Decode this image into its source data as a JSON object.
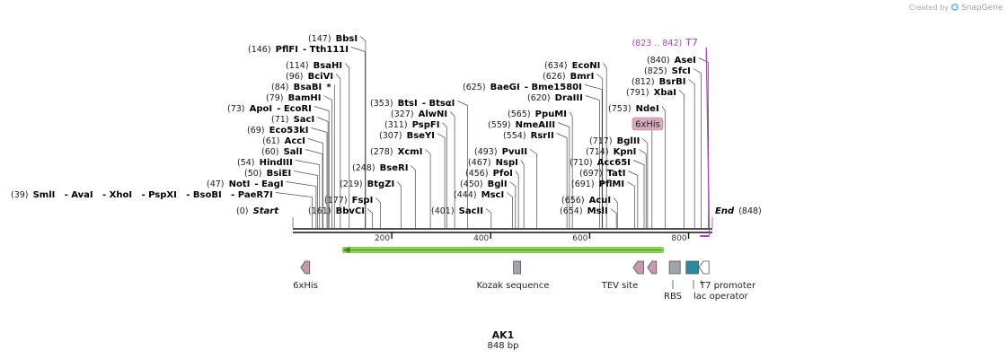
{
  "credit": {
    "prefix": "Created by",
    "brand": "SnapGene"
  },
  "construct": {
    "name": "AK1",
    "length_label": "848 bp",
    "length": 848
  },
  "scale": {
    "ticks": [
      200,
      400,
      600,
      800
    ]
  },
  "ends": {
    "start": {
      "pos": "(0)",
      "label": "Start"
    },
    "end": {
      "label": "End",
      "pos": "(848)"
    }
  },
  "sites": [
    {
      "id": "bbsi",
      "pos": "(147)",
      "name": "BbsI",
      "cut": 147
    },
    {
      "id": "pflfi",
      "pos": "(146)",
      "name": "PflFI",
      "alt": "- Tth111I",
      "cut": 146
    },
    {
      "id": "bsahi",
      "pos": "(114)",
      "name": "BsaHI",
      "cut": 114
    },
    {
      "id": "bcivi",
      "pos": "(96)",
      "name": "BciVI",
      "cut": 96
    },
    {
      "id": "bsabi",
      "pos": "(84)",
      "name": "BsaBI",
      "alt": "*",
      "cut": 84
    },
    {
      "id": "bamhi",
      "pos": "(79)",
      "name": "BamHI",
      "cut": 79
    },
    {
      "id": "apoi",
      "pos": "(73)",
      "name": "ApoI",
      "alt": "- EcoRI",
      "cut": 73
    },
    {
      "id": "saci",
      "pos": "(71)",
      "name": "SacI",
      "cut": 71
    },
    {
      "id": "eco53ki",
      "pos": "(69)",
      "name": "Eco53kI",
      "cut": 69
    },
    {
      "id": "acci",
      "pos": "(61)",
      "name": "AccI",
      "cut": 61
    },
    {
      "id": "sali",
      "pos": "(60)",
      "name": "SalI",
      "cut": 60
    },
    {
      "id": "hindiii",
      "pos": "(54)",
      "name": "HindIII",
      "cut": 54
    },
    {
      "id": "bsiei",
      "pos": "(50)",
      "name": "BsiEI",
      "cut": 50
    },
    {
      "id": "noti",
      "pos": "(47)",
      "name": "NotI",
      "alt": "- EagI",
      "cut": 47
    },
    {
      "id": "smli",
      "pos": "(39)",
      "name": "SmlI",
      "alt": "- AvaI   - XhoI   - PspXI   - BsoBI   - PaeR7I",
      "cut": 39
    },
    {
      "id": "bbvci",
      "pos": "(161)",
      "name": "BbvCI",
      "cut": 161
    },
    {
      "id": "fspi",
      "pos": "(177)",
      "name": "FspI",
      "cut": 177
    },
    {
      "id": "btgzi",
      "pos": "(219)",
      "name": "BtgZI",
      "cut": 219
    },
    {
      "id": "bseri",
      "pos": "(248)",
      "name": "BseRI",
      "cut": 248
    },
    {
      "id": "xcmi",
      "pos": "(278)",
      "name": "XcmI",
      "cut": 278
    },
    {
      "id": "bseyi",
      "pos": "(307)",
      "name": "BseYI",
      "cut": 307
    },
    {
      "id": "pspfi",
      "pos": "(311)",
      "name": "PspFI",
      "cut": 311
    },
    {
      "id": "alwni",
      "pos": "(327)",
      "name": "AlwNI",
      "cut": 327
    },
    {
      "id": "btsi",
      "pos": "(353)",
      "name": "BtsI",
      "alt": "- BtsαI",
      "cut": 353
    },
    {
      "id": "sacii",
      "pos": "(401)",
      "name": "SacII",
      "cut": 401
    },
    {
      "id": "msci",
      "pos": "(444)",
      "name": "MscI",
      "cut": 444
    },
    {
      "id": "bgli",
      "pos": "(450)",
      "name": "BglI",
      "cut": 450
    },
    {
      "id": "pfoi",
      "pos": "(456)",
      "name": "PfoI",
      "cut": 456
    },
    {
      "id": "nspi",
      "pos": "(467)",
      "name": "NspI",
      "cut": 467
    },
    {
      "id": "pvuii",
      "pos": "(493)",
      "name": "PvuII",
      "cut": 493
    },
    {
      "id": "rsrii",
      "pos": "(554)",
      "name": "RsrII",
      "cut": 554
    },
    {
      "id": "nmeaiii",
      "pos": "(559)",
      "name": "NmeAIII",
      "cut": 559
    },
    {
      "id": "ppumi",
      "pos": "(565)",
      "name": "PpuMI",
      "cut": 565
    },
    {
      "id": "draiii",
      "pos": "(620)",
      "name": "DraIII",
      "cut": 620
    },
    {
      "id": "baegi",
      "pos": "(625)",
      "name": "BaeGI",
      "alt": "- Bme1580I",
      "cut": 625
    },
    {
      "id": "bmri",
      "pos": "(626)",
      "name": "BmrI",
      "cut": 626
    },
    {
      "id": "econi",
      "pos": "(634)",
      "name": "EcoNI",
      "cut": 634
    },
    {
      "id": "msli",
      "pos": "(654)",
      "name": "MslI",
      "cut": 654
    },
    {
      "id": "acui",
      "pos": "(656)",
      "name": "AcuI",
      "cut": 656
    },
    {
      "id": "pflmi",
      "pos": "(691)",
      "name": "PflMI",
      "cut": 691
    },
    {
      "id": "tati",
      "pos": "(697)",
      "name": "TatI",
      "cut": 697
    },
    {
      "id": "acc65i",
      "pos": "(710)",
      "name": "Acc65I",
      "cut": 710
    },
    {
      "id": "kpni",
      "pos": "(714)",
      "name": "KpnI",
      "cut": 714
    },
    {
      "id": "bglii",
      "pos": "(717)",
      "name": "BglII",
      "cut": 717
    },
    {
      "id": "ndei",
      "pos": "(753)",
      "name": "NdeI",
      "cut": 753
    },
    {
      "id": "xbai",
      "pos": "(791)",
      "name": "XbaI",
      "cut": 791
    },
    {
      "id": "bsrbi",
      "pos": "(812)",
      "name": "BsrBI",
      "cut": 812
    },
    {
      "id": "sfci",
      "pos": "(825)",
      "name": "SfcI",
      "cut": 825
    },
    {
      "id": "asei",
      "pos": "(840)",
      "name": "AseI",
      "cut": 840
    }
  ],
  "primer": {
    "range": "(823 .. 842)",
    "name": "T7",
    "start": 823,
    "end": 842,
    "color": "#b040c8"
  },
  "features": {
    "orf": {
      "start": 101,
      "end": 749,
      "direction": "reverse",
      "color": "#8ed84e"
    },
    "his_tag_track": {
      "label": "6xHis",
      "start": 717,
      "end": 735,
      "color": "#c898b0"
    },
    "map_features": [
      {
        "id": "6xhis",
        "label": "6xHis",
        "start": 16,
        "end": 34,
        "kind": "arrow-left",
        "color": "#c898b0"
      },
      {
        "id": "kozak",
        "label": "Kozak sequence",
        "start": 446,
        "end": 455,
        "kind": "box",
        "color": "#a0a4ab"
      },
      {
        "id": "tev",
        "label": "TEV site",
        "start": 688,
        "end": 709,
        "kind": "arrow-left",
        "color": "#c898b0"
      },
      {
        "id": "his2",
        "label": "",
        "start": 717,
        "end": 735,
        "kind": "arrow-left",
        "color": "#c898b0"
      },
      {
        "id": "rbs",
        "label": "RBS",
        "start": 761,
        "end": 783,
        "kind": "box",
        "color": "#a0a4ab"
      },
      {
        "id": "lac",
        "label": "lac operator",
        "start": 795,
        "end": 820,
        "kind": "box",
        "color": "#2a8aa0"
      },
      {
        "id": "t7p",
        "label": "T7 promoter",
        "start": 821,
        "end": 841,
        "kind": "arrow-left",
        "color": "#ffffff"
      }
    ]
  }
}
